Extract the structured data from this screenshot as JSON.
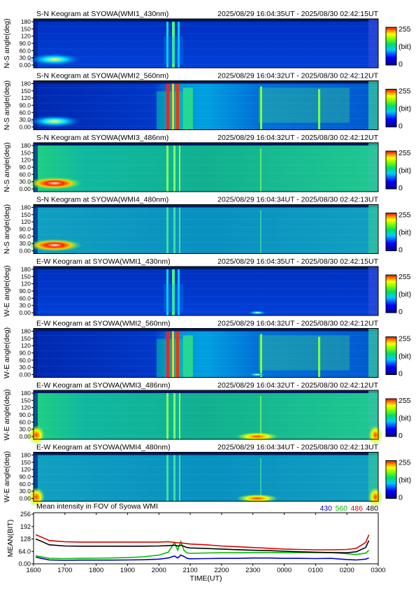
{
  "keograms": [
    {
      "title": "S-N Keogram at SYOWA(WMI1_430nm)",
      "time_range": "2025/08/29 16:04:35UT - 2025/08/30 02:42:15UT",
      "ylabel": "N-S angle(deg)",
      "colorbar": {
        "max": "255",
        "unit": "(bit)",
        "min": "0"
      },
      "style": "blue"
    },
    {
      "title": "S-N Keogram at SYOWA(WMI2_560nm)",
      "time_range": "2025/08/29 16:04:32UT - 2025/08/30 02:42:12UT",
      "ylabel": "N-S angle(deg)",
      "colorbar": {
        "max": "255",
        "unit": "(bit)",
        "min": "0"
      },
      "style": "active"
    },
    {
      "title": "S-N Keogram at SYOWA(WMI3_486nm)",
      "time_range": "2025/08/29 16:04:32UT - 2025/08/30 02:42:12UT",
      "ylabel": "N-S angle(deg)",
      "colorbar": {
        "max": "255",
        "unit": "(bit)",
        "min": "0"
      },
      "style": "green"
    },
    {
      "title": "S-N Keogram at SYOWA(WMI4_480nm)",
      "time_range": "2025/08/29 16:04:34UT - 2025/08/30 02:42:13UT",
      "ylabel": "N-S angle(deg)",
      "colorbar": {
        "max": "255",
        "unit": "(bit)",
        "min": "0"
      },
      "style": "teal"
    },
    {
      "title": "E-W Keogram at SYOWA(WMI1_430nm)",
      "time_range": "2025/08/29 16:04:35UT - 2025/08/30 02:42:15UT",
      "ylabel": "W-E angle(deg)",
      "colorbar": {
        "max": "255",
        "unit": "(bit)",
        "min": "0"
      },
      "style": "blue"
    },
    {
      "title": "E-W Keogram at SYOWA(WMI2_560nm)",
      "time_range": "2025/08/29 16:04:32UT - 2025/08/30 02:42:12UT",
      "ylabel": "W-E angle(deg)",
      "colorbar": {
        "max": "255",
        "unit": "(bit)",
        "min": "0"
      },
      "style": "active"
    },
    {
      "title": "E-W Keogram at SYOWA(WMI3_486nm)",
      "time_range": "2025/08/29 16:04:32UT - 2025/08/30 02:42:12UT",
      "ylabel": "W-E angle(deg)",
      "colorbar": {
        "max": "255",
        "unit": "(bit)",
        "min": "0"
      },
      "style": "green"
    },
    {
      "title": "E-W Keogram at SYOWA(WMI4_480nm)",
      "time_range": "2025/08/29 16:04:34UT - 2025/08/30 02:42:13UT",
      "ylabel": "W-E angle(deg)",
      "colorbar": {
        "max": "255",
        "unit": "(bit)",
        "min": "0"
      },
      "style": "teal"
    }
  ],
  "keogram_yticks": [
    "180",
    "150",
    "120",
    "90.0",
    "60.0",
    "30.0",
    "0.00"
  ],
  "chart_data": {
    "type": "line",
    "title": "Mean intensity in FOV of Syowa WMI",
    "xlabel": "TIME(UT)",
    "ylabel": "MEAN(BIT)",
    "xticks": [
      "1600",
      "1700",
      "1800",
      "1900",
      "2000",
      "2100",
      "2200",
      "2300",
      "0000",
      "0100",
      "0200",
      "0300"
    ],
    "yticks": [
      "0.00",
      "64.0",
      "128",
      "192",
      "256"
    ],
    "ylim": [
      0,
      256
    ],
    "x": [
      16.07,
      16.25,
      16.5,
      17.0,
      17.5,
      18.0,
      18.5,
      19.0,
      19.5,
      20.0,
      20.3,
      20.5,
      20.6,
      20.7,
      20.8,
      20.9,
      21.0,
      21.5,
      22.0,
      22.5,
      23.0,
      23.5,
      24.0,
      24.5,
      25.0,
      25.5,
      26.0,
      26.3,
      26.6,
      26.7
    ],
    "series": [
      {
        "name": "430",
        "color": "#0000cc",
        "values": [
          35,
          28,
          20,
          18,
          19,
          19,
          19,
          20,
          21,
          24,
          30,
          40,
          30,
          45,
          38,
          28,
          26,
          27,
          28,
          28,
          30,
          30,
          28,
          28,
          27,
          28,
          22,
          20,
          24,
          30
        ]
      },
      {
        "name": "560",
        "color": "#00bb00",
        "values": [
          42,
          36,
          28,
          27,
          28,
          29,
          30,
          32,
          36,
          45,
          60,
          110,
          70,
          115,
          70,
          56,
          54,
          56,
          57,
          57,
          58,
          58,
          58,
          58,
          58,
          58,
          52,
          48,
          55,
          70
        ]
      },
      {
        "name": "486",
        "color": "#dd0000",
        "values": [
          150,
          138,
          120,
          114,
          112,
          112,
          112,
          112,
          112,
          112,
          114,
          110,
          108,
          108,
          106,
          104,
          102,
          98,
          92,
          88,
          84,
          80,
          76,
          74,
          72,
          72,
          74,
          80,
          110,
          150
        ]
      },
      {
        "name": "480",
        "color": "#000000",
        "values": [
          128,
          116,
          98,
          92,
          91,
          91,
          91,
          91,
          91,
          92,
          94,
          96,
          92,
          96,
          90,
          84,
          82,
          79,
          76,
          73,
          70,
          68,
          65,
          62,
          60,
          58,
          57,
          62,
          84,
          120
        ]
      }
    ]
  }
}
